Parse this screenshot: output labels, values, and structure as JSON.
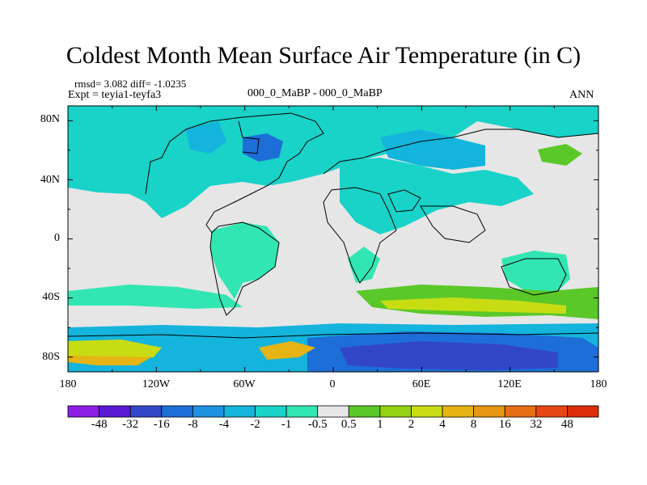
{
  "title": "Coldest Month Mean Surface Air Temperature (in C)",
  "stats": "rmsd= 3.082 diff= -1.0235",
  "expt": "Expt = teyia1-teyfa3",
  "center_label": "000_0_MaBP - 000_0_MaBP",
  "season": "ANN",
  "lat_labels": [
    "80N",
    "40N",
    "0",
    "40S",
    "80S"
  ],
  "lon_labels": [
    "180",
    "120W",
    "60W",
    "0",
    "60E",
    "120E",
    "180"
  ],
  "colorbar": {
    "labels": [
      "-48",
      "-32",
      "-16",
      "-8",
      "-4",
      "-2",
      "-1",
      "-0.5",
      "0.5",
      "1",
      "2",
      "4",
      "8",
      "16",
      "32",
      "48"
    ],
    "colors": [
      "#8c1ee6",
      "#5a19d2",
      "#3247c8",
      "#1e6ed7",
      "#1e91e1",
      "#14b4dc",
      "#19d2c8",
      "#32e6b4",
      "#e6e6e6",
      "#5ac828",
      "#96d214",
      "#c8dc14",
      "#e6b414",
      "#e69614",
      "#e66e14",
      "#e64614",
      "#dc2d0a"
    ]
  },
  "map_colors": {
    "neutral": "#e6e6e6",
    "light_cyan": "#32e6b4",
    "cyan": "#19d2c8",
    "teal": "#14b4dc",
    "blue": "#1e91e1",
    "deep_blue": "#1e6ed7",
    "indigo": "#3247c8",
    "green": "#5ac828",
    "yellow_green": "#c8dc14",
    "orange": "#e6b414"
  }
}
